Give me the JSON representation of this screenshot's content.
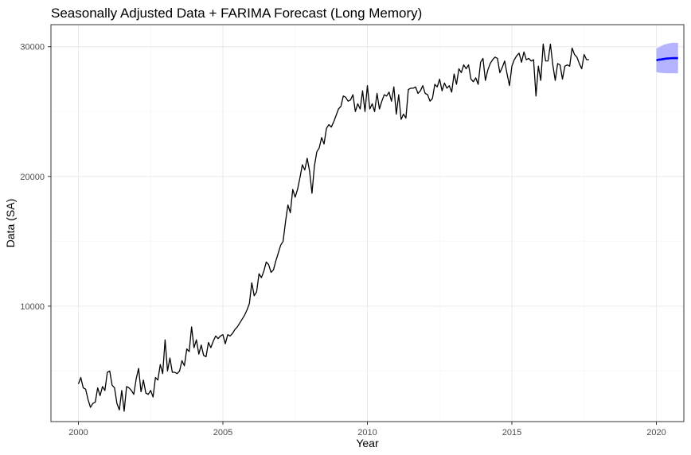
{
  "chart_data": {
    "type": "line",
    "title": "Seasonally Adjusted Data + FARIMA Forecast (Long Memory)",
    "xlabel": "Year",
    "ylabel": "Data (SA)",
    "xlim": [
      1999.05,
      2020.95
    ],
    "ylim": [
      1100,
      31700
    ],
    "x_ticks": [
      2000,
      2005,
      2010,
      2015,
      2020
    ],
    "x_tick_labels": [
      "2000",
      "2005",
      "2010",
      "2015",
      "2020"
    ],
    "y_ticks": [
      10000,
      20000,
      30000
    ],
    "y_tick_labels": [
      "10000",
      "20000",
      "30000"
    ],
    "grid": true,
    "legend": "none",
    "colors": {
      "observed": "#000000",
      "forecast": "#0000ff",
      "interval": "#b3b3ff",
      "panel_border": "#333333",
      "grid_major": "#ebebeb",
      "grid_minor": "#f5f5f5"
    },
    "series": [
      {
        "role": "observed",
        "x_start": 2000.0,
        "x_step": 0.083333,
        "values": [
          4000,
          4500,
          3700,
          3600,
          2800,
          2200,
          2500,
          2600,
          3700,
          3100,
          3800,
          3500,
          4900,
          5000,
          3900,
          3700,
          2500,
          2000,
          3500,
          1900,
          3800,
          3700,
          3500,
          3200,
          4400,
          5200,
          3400,
          4300,
          3300,
          3200,
          3500,
          3000,
          4500,
          4300,
          5500,
          4800,
          7400,
          5000,
          6000,
          4900,
          4900,
          4800,
          5000,
          5800,
          5400,
          6700,
          6500,
          8400,
          6800,
          7400,
          6300,
          7000,
          6200,
          6100,
          7200,
          6800,
          7300,
          7700,
          7500,
          7700,
          7800,
          7100,
          7800,
          7700,
          7900,
          8200,
          8400,
          8700,
          9000,
          9300,
          9700,
          10200,
          11800,
          10800,
          11100,
          12500,
          12200,
          12700,
          13400,
          13200,
          12600,
          12800,
          13500,
          14100,
          14700,
          15000,
          16500,
          17800,
          17200,
          19000,
          18400,
          19000,
          19900,
          20900,
          20500,
          21400,
          20400,
          18700,
          20800,
          21900,
          22200,
          23000,
          22500,
          23700,
          24000,
          23800,
          24200,
          24700,
          25200,
          25400,
          26200,
          26100,
          25800,
          25900,
          26300,
          25000,
          25600,
          25200,
          26600,
          25000,
          27000,
          25200,
          25600,
          25000,
          26400,
          25200,
          25800,
          26300,
          26200,
          26500,
          25800,
          26900,
          24800,
          26300,
          24400,
          24800,
          24500,
          26700,
          26800,
          26800,
          26900,
          26400,
          26600,
          27000,
          26400,
          26300,
          25800,
          26000,
          27100,
          26900,
          27500,
          26600,
          27200,
          26800,
          27000,
          26500,
          27900,
          27100,
          28300,
          28000,
          28600,
          28300,
          28600,
          27500,
          27300,
          27600,
          27100,
          28800,
          29100,
          27400,
          28200,
          28700,
          29000,
          29200,
          29100,
          28000,
          28400,
          28900,
          27900,
          27000,
          28500,
          29000,
          29300,
          29500,
          28800,
          29600,
          29000,
          29100,
          28900,
          29000,
          26200,
          28500,
          27400,
          30200,
          28900,
          28900,
          30200,
          28600,
          27400,
          28700,
          28600,
          27500,
          28500,
          28600,
          28500,
          29900,
          29400,
          29200,
          28700,
          28300,
          29400,
          29000,
          29000
        ]
      },
      {
        "role": "forecast",
        "x": [
          2020.0,
          2020.083,
          2020.167,
          2020.25,
          2020.333,
          2020.417,
          2020.5,
          2020.583,
          2020.667,
          2020.75
        ],
        "values": [
          28950,
          29000,
          29020,
          29050,
          29080,
          29100,
          29110,
          29120,
          29120,
          29120
        ],
        "lower": [
          28050,
          28000,
          27980,
          27970,
          27960,
          27950,
          27950,
          27950,
          27950,
          27950
        ],
        "upper": [
          29850,
          29950,
          30050,
          30150,
          30200,
          30250,
          30280,
          30300,
          30300,
          30300
        ]
      }
    ]
  }
}
